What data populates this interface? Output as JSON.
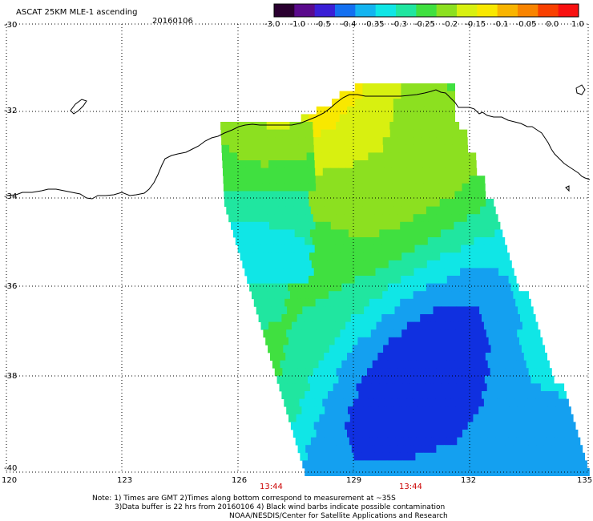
{
  "header": {
    "title": "ASCAT 25KM MLE-1 ascending",
    "date": "20160106"
  },
  "colorbar": {
    "colors": [
      "#2a0030",
      "#5a0a8c",
      "#3a1fd6",
      "#1470f0",
      "#14b4f0",
      "#10e6e6",
      "#20e6a0",
      "#40e040",
      "#8ce020",
      "#d8f010",
      "#f8e800",
      "#f8b400",
      "#f88400",
      "#f84000",
      "#f81010"
    ],
    "ticks": [
      "-3.0",
      "-1.0",
      "-0.5",
      "-0.4",
      "-0.35",
      "-0.3",
      "-0.25",
      "-0.2",
      "-0.15",
      "-0.1",
      "-0.05",
      "0.0",
      "1.0"
    ]
  },
  "map": {
    "lat_labels": [
      "-30",
      "-32",
      "-34",
      "-36",
      "-38",
      "-40"
    ],
    "lon_labels": [
      "120",
      "123",
      "126",
      "129",
      "132",
      "135"
    ],
    "time_labels": [
      "13:44",
      "13:44"
    ]
  },
  "notes": [
    "Note: 1) Times are GMT 2)Times along bottom correspond to measurement at ~35S",
    "3)Data buffer is 22 hrs from 20160106 4) Black wind barbs indicate possible contamination",
    "NOAA/NESDIS/Center for Satellite Applications and Research"
  ]
}
